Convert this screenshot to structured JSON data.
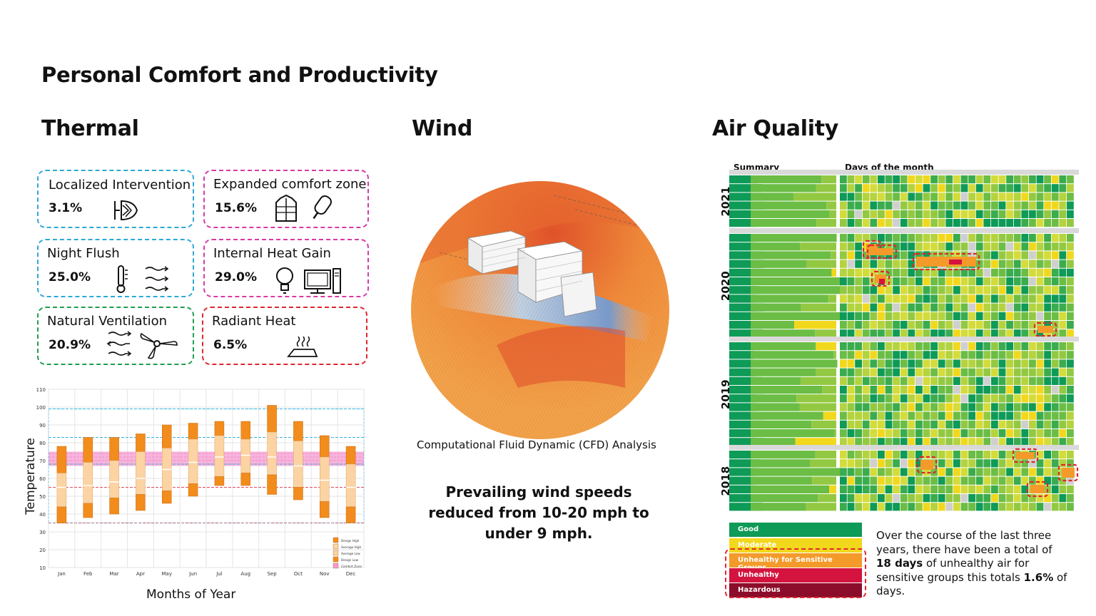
{
  "page": {
    "title": "Personal Comfort and Productivity"
  },
  "thermal": {
    "title": "Thermal",
    "cards": [
      {
        "label": "Localized Intervention",
        "pct": "3.1%",
        "icon": "spot-cooler-icon",
        "color": "#2ea8d8"
      },
      {
        "label": "Expanded comfort zone",
        "pct": "15.6%",
        "icon": "jacket-icecream-icon",
        "color": "#d63aa7"
      },
      {
        "label": "Night Flush",
        "pct": "25.0%",
        "icon": "thermometer-wind-icon",
        "color": "#2ea8d8"
      },
      {
        "label": "Internal Heat Gain",
        "pct": "29.0%",
        "icon": "bulb-computer-icon",
        "color": "#d63aa7"
      },
      {
        "label": "Natural Ventilation",
        "pct": "20.9%",
        "icon": "wind-fan-icon",
        "color": "#1f9e4e"
      },
      {
        "label": "Radiant Heat",
        "pct": "6.5%",
        "icon": "radiant-floor-icon",
        "color": "#e0262e"
      }
    ],
    "chart": {
      "ylabel": "Temperature",
      "xlabel": "Months of Year"
    }
  },
  "chart_data": {
    "type": "bar",
    "title": "",
    "xlabel": "Months of Year",
    "ylabel": "Temperature",
    "ylim": [
      10,
      110
    ],
    "yticks": [
      10,
      20,
      30,
      40,
      50,
      60,
      70,
      80,
      90,
      100,
      110
    ],
    "categories": [
      "Jan",
      "Feb",
      "Mar",
      "Apr",
      "May",
      "Jun",
      "Jul",
      "Aug",
      "Sep",
      "Oct",
      "Nov",
      "Dec"
    ],
    "series": [
      {
        "name": "Design High",
        "values": [
          78,
          83,
          83,
          85,
          90,
          91,
          92,
          92,
          101,
          92,
          84,
          78
        ]
      },
      {
        "name": "Average High",
        "values": [
          63,
          69,
          70,
          75,
          77,
          82,
          84,
          82,
          86,
          81,
          72,
          68
        ]
      },
      {
        "name": "Average Low",
        "values": [
          44,
          46,
          49,
          51,
          53,
          57,
          61,
          63,
          62,
          55,
          47,
          44
        ]
      },
      {
        "name": "Design Low",
        "values": [
          35,
          38,
          40,
          42,
          46,
          50,
          56,
          56,
          51,
          48,
          38,
          35
        ]
      }
    ],
    "mean": [
      55,
      56,
      58,
      60,
      65,
      69,
      72,
      73,
      72,
      67,
      59,
      55
    ],
    "comfort_zone": [
      67,
      75
    ],
    "reference_lines": [
      99,
      83,
      68,
      55,
      35
    ],
    "legend": [
      "Design High",
      "Average High",
      "Average Low",
      "Design Low",
      "Comfort Zone"
    ],
    "legend_position": "bottom-right",
    "grid": true
  },
  "wind": {
    "title": "Wind",
    "caption": "Computational Fluid Dynamic (CFD) Analysis",
    "statement": "Prevailing wind speeds reduced from 10-20 mph to under 9 mph."
  },
  "air_quality": {
    "title": "Air Quality",
    "summary_header": "Summary",
    "days_header": "Days of the month",
    "years": [
      "2021",
      "2020",
      "2019",
      "2018"
    ],
    "legend": [
      {
        "label": "Good",
        "color": "#0e9a57"
      },
      {
        "label": "Moderate",
        "color": "#f2d81c"
      },
      {
        "label": "Unhealthy for Sensitive Groups",
        "color": "#f39a2b"
      },
      {
        "label": "Unhealthy",
        "color": "#d4143f"
      },
      {
        "label": "Hazardous",
        "color": "#8c0d2b"
      }
    ],
    "statement_parts": {
      "a": "Over the course of the last three years, there have been a total of ",
      "b": "18 days",
      "c": " of unhealthy air for sensitive groups this totals ",
      "d": "1.6%",
      "e": " of days."
    }
  }
}
